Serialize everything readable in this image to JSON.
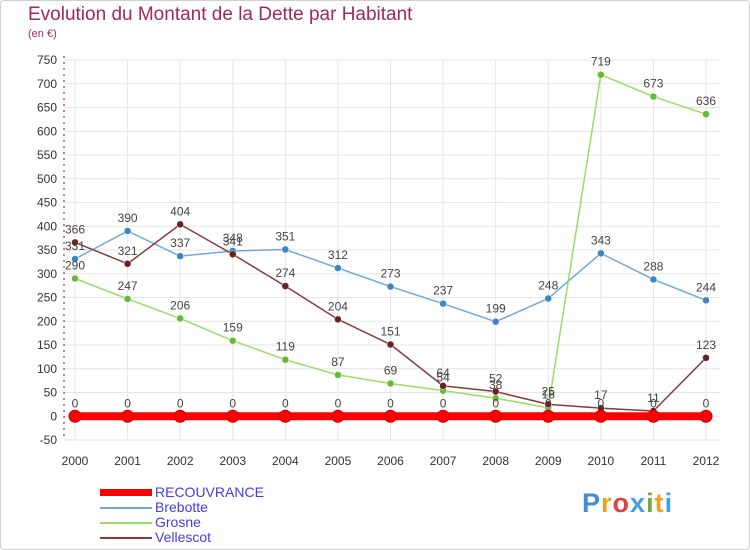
{
  "brand": {
    "text": "Proxiti",
    "letters": [
      {
        "ch": "P",
        "color": "#3f8fd6"
      },
      {
        "ch": "r",
        "color": "#f0a020"
      },
      {
        "ch": "o",
        "color": "#e04040"
      },
      {
        "ch": "x",
        "color": "#40a0e0"
      },
      {
        "ch": "i",
        "color": "#70b030"
      },
      {
        "ch": "t",
        "color": "#f0a020"
      },
      {
        "ch": "i",
        "color": "#40a0e0"
      }
    ]
  },
  "chart_data": {
    "type": "line",
    "title": "Evolution du Montant de la Dette par Habitant",
    "subtitle": "(en €)",
    "xlabel": "",
    "ylabel": "",
    "ylim": [
      -50,
      750
    ],
    "yticks": [
      -50,
      0,
      50,
      100,
      150,
      200,
      250,
      300,
      350,
      400,
      450,
      500,
      550,
      600,
      650,
      700,
      750
    ],
    "grid": true,
    "categories": [
      "2000",
      "2001",
      "2002",
      "2003",
      "2004",
      "2005",
      "2006",
      "2007",
      "2008",
      "2009",
      "2010",
      "2011",
      "2012"
    ],
    "series": [
      {
        "name": "RECOUVRANCE",
        "color": "#ff0000",
        "thick": true,
        "values": [
          0,
          0,
          0,
          0,
          0,
          0,
          0,
          0,
          0,
          0,
          0,
          0,
          0
        ],
        "labels": [
          "0",
          "0",
          "0",
          "0",
          "0",
          "0",
          "0",
          "0",
          "0",
          "0",
          "0",
          "0",
          "0"
        ]
      },
      {
        "name": "Brebotte",
        "color": "#6fa8dc",
        "marker": "#3d85c6",
        "values": [
          331,
          390,
          337,
          348,
          351,
          312,
          273,
          237,
          199,
          248,
          343,
          288,
          244
        ],
        "labels": [
          "331",
          "390",
          "337",
          "348",
          "351",
          "312",
          "273",
          "237",
          "199",
          "248",
          "343",
          "288",
          "244"
        ]
      },
      {
        "name": "Grosne",
        "color": "#99dd66",
        "marker": "#66bb33",
        "values": [
          290,
          247,
          206,
          159,
          119,
          87,
          69,
          54,
          38,
          18,
          719,
          673,
          636
        ],
        "labels": [
          "290",
          "247",
          "206",
          "159",
          "119",
          "87",
          "69",
          "54",
          "38",
          "18",
          "719",
          "673",
          "636"
        ]
      },
      {
        "name": "Vellescot",
        "color": "#8b3a3a",
        "marker": "#6b1f1f",
        "values": [
          366,
          321,
          404,
          341,
          274,
          204,
          151,
          64,
          52,
          25,
          17,
          11,
          123
        ],
        "labels": [
          "366",
          "321",
          "404",
          "341",
          "274",
          "204",
          "151",
          "64",
          "52",
          "25",
          "17",
          "11",
          "123"
        ]
      }
    ]
  }
}
